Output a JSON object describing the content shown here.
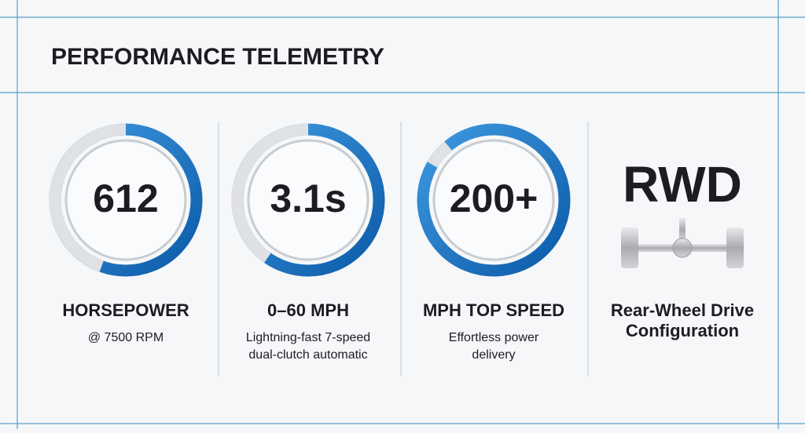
{
  "header": {
    "title": "PERFORMANCE TELEMETRY"
  },
  "stats": [
    {
      "value": "612",
      "label": [
        "HORSEPOWER"
      ],
      "detail": [
        "@ 7500 RPM"
      ]
    },
    {
      "value": "3.1s",
      "label": [
        "0–60 MPH"
      ],
      "detail": [
        "Lightning-fast 7-speed",
        "dual-clutch automatic"
      ]
    },
    {
      "value": "200+",
      "label": [
        "MPH TOP SPEED"
      ],
      "detail": [
        "Effortless power",
        "delivery"
      ]
    },
    {
      "value": "RWD",
      "label": [
        "Rear-Wheel Drive",
        "Configuration"
      ],
      "detail": []
    }
  ]
}
